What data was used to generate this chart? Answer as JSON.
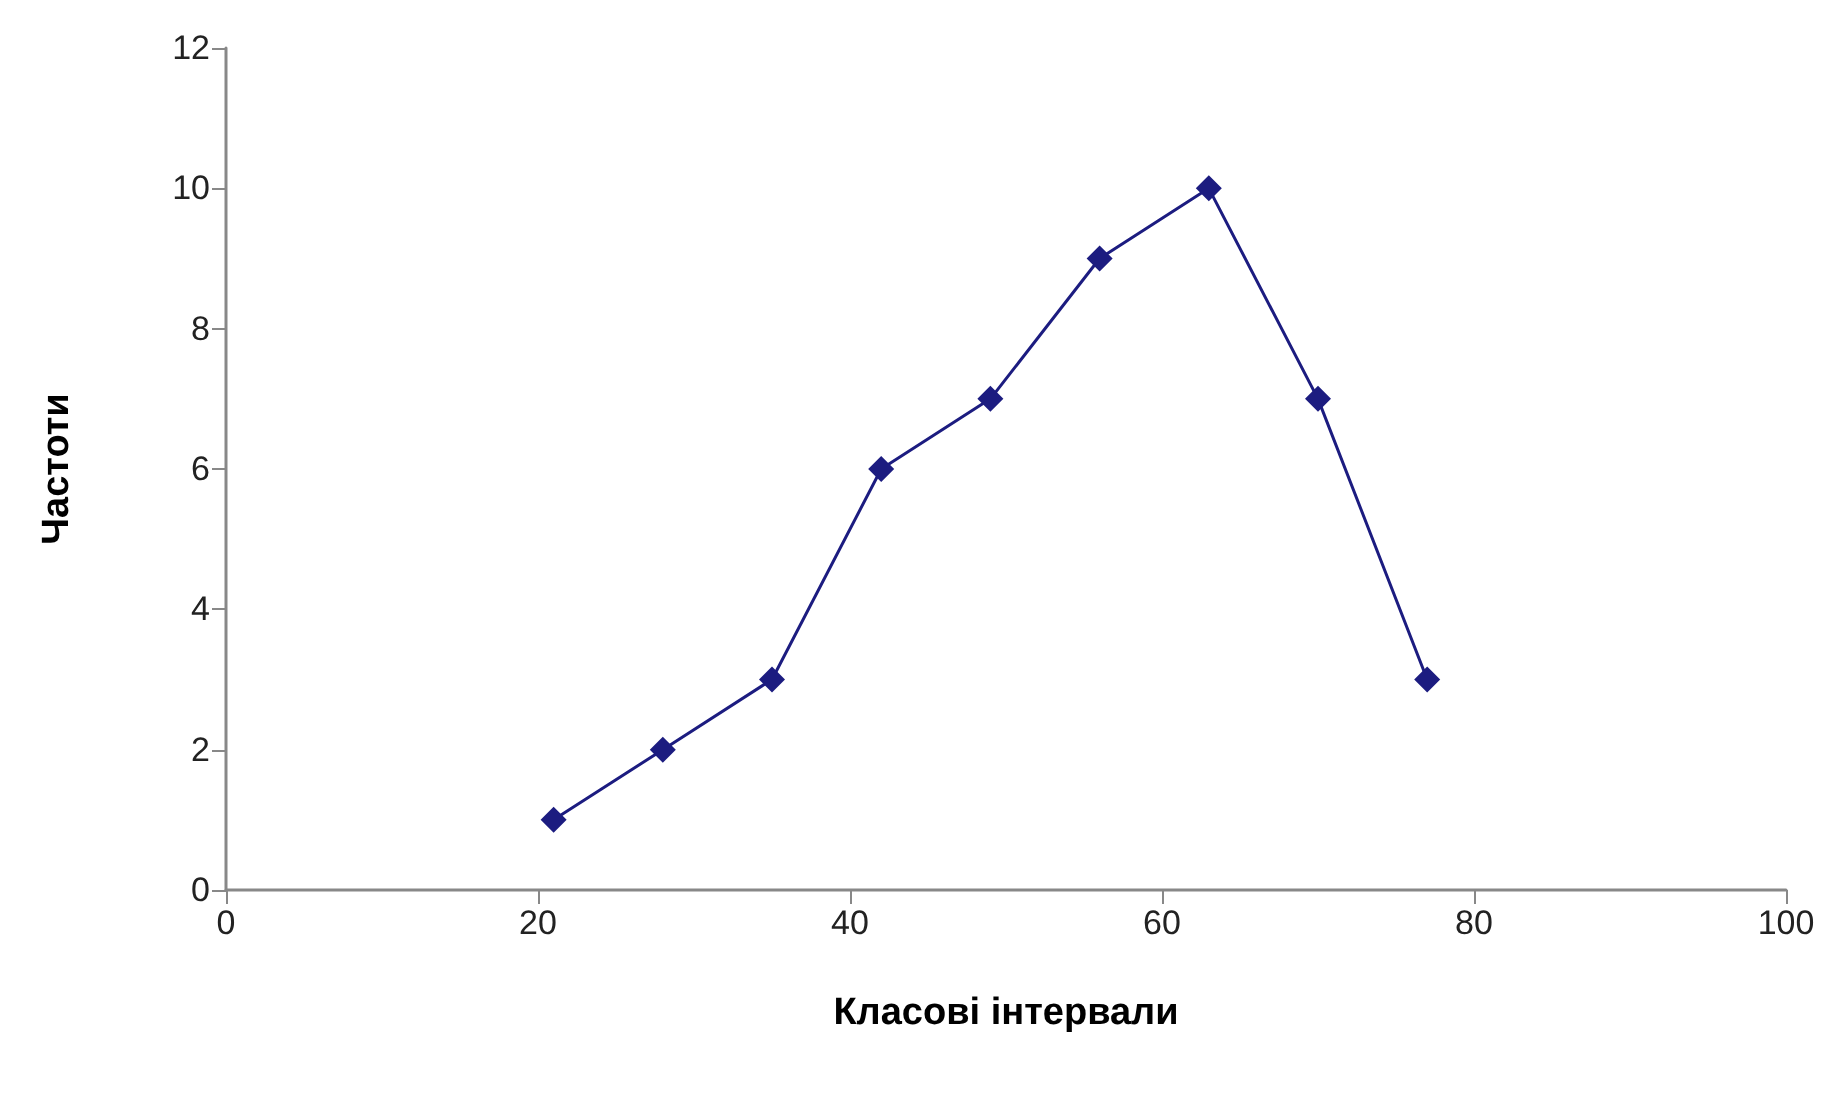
{
  "chart_data": {
    "type": "line",
    "xlabel": "Класові інтервали",
    "ylabel": "Частоти",
    "x": [
      21,
      28,
      35,
      42,
      49,
      56,
      63,
      70,
      77
    ],
    "series": [
      {
        "color": "#1c1c80",
        "values": [
          1,
          2,
          3,
          6,
          7,
          9,
          10,
          7,
          3
        ]
      }
    ],
    "xlim": [
      0,
      100
    ],
    "xticks": [
      0,
      20,
      40,
      60,
      80,
      100
    ],
    "ylim": [
      0,
      12
    ],
    "yticks": [
      0,
      2,
      4,
      6,
      8,
      10,
      12
    ],
    "grid": false,
    "marker": "diamond",
    "line_style": "solid"
  }
}
